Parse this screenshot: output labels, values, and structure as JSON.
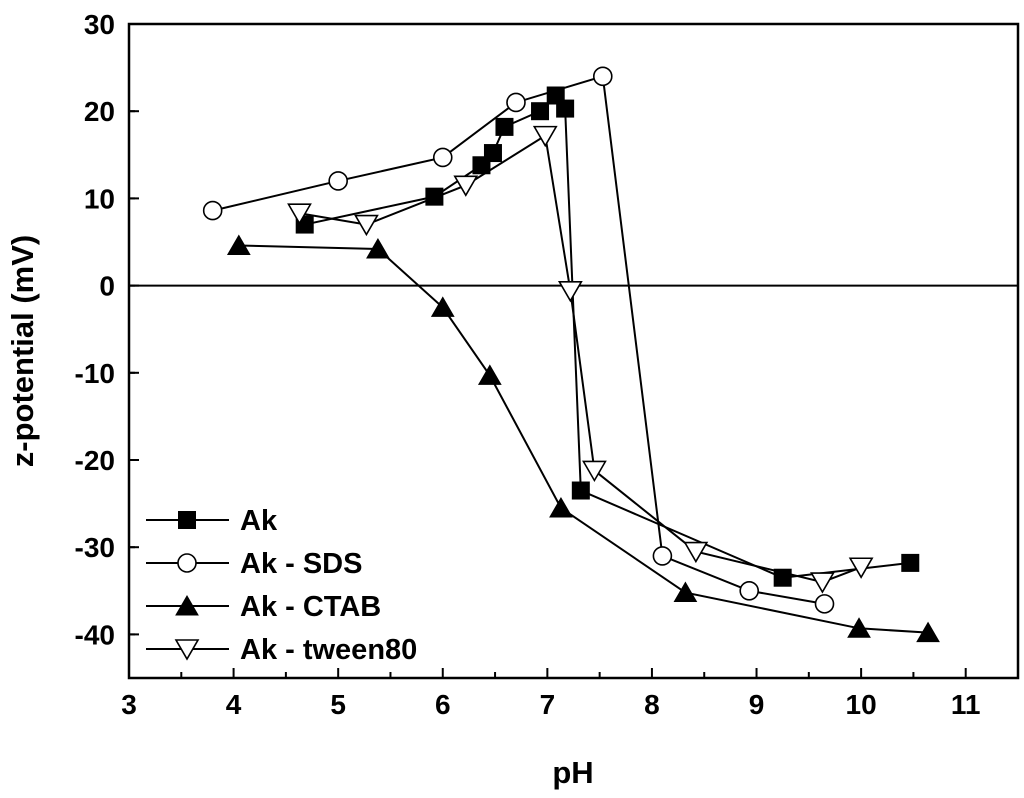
{
  "chart_data": {
    "type": "line",
    "title": "",
    "xlabel": "pH",
    "ylabel": "z-potential (mV)",
    "xlim": [
      3,
      11.5
    ],
    "ylim": [
      -45,
      30
    ],
    "xticks": [
      3,
      4,
      5,
      6,
      7,
      8,
      9,
      10,
      11
    ],
    "yticks": [
      30,
      20,
      10,
      0,
      -10,
      -20,
      -30,
      -40
    ],
    "reference_line_y": 0,
    "grid": false,
    "legend_position": "bottom-left",
    "series": [
      {
        "name": "Ak",
        "marker": "square-filled",
        "x": [
          4.68,
          5.92,
          6.37,
          6.48,
          6.59,
          6.93,
          7.08,
          7.17,
          7.32,
          9.25,
          10.47
        ],
        "y": [
          7.0,
          10.2,
          13.8,
          15.2,
          18.2,
          20.0,
          21.8,
          20.3,
          -23.5,
          -33.5,
          -31.8
        ]
      },
      {
        "name": "Ak - SDS",
        "marker": "circle-open",
        "x": [
          3.8,
          5.0,
          6.0,
          6.7,
          7.53,
          8.1,
          8.93,
          9.65
        ],
        "y": [
          8.6,
          12.0,
          14.7,
          21.0,
          24.0,
          -31.0,
          -35.0,
          -36.5
        ]
      },
      {
        "name": "Ak - CTAB",
        "marker": "triangle-up-filled",
        "x": [
          4.05,
          5.38,
          6.0,
          6.45,
          7.13,
          8.32,
          9.98,
          10.64
        ],
        "y": [
          4.6,
          4.2,
          -2.5,
          -10.3,
          -25.5,
          -35.2,
          -39.3,
          -39.8
        ]
      },
      {
        "name": "Ak - tween80",
        "marker": "triangle-down-open",
        "x": [
          4.63,
          5.27,
          6.22,
          6.98,
          7.22,
          7.45,
          8.42,
          9.63,
          10.0
        ],
        "y": [
          8.3,
          7.0,
          11.5,
          17.2,
          -0.6,
          -21.2,
          -30.5,
          -34.0,
          -32.3
        ]
      }
    ]
  }
}
